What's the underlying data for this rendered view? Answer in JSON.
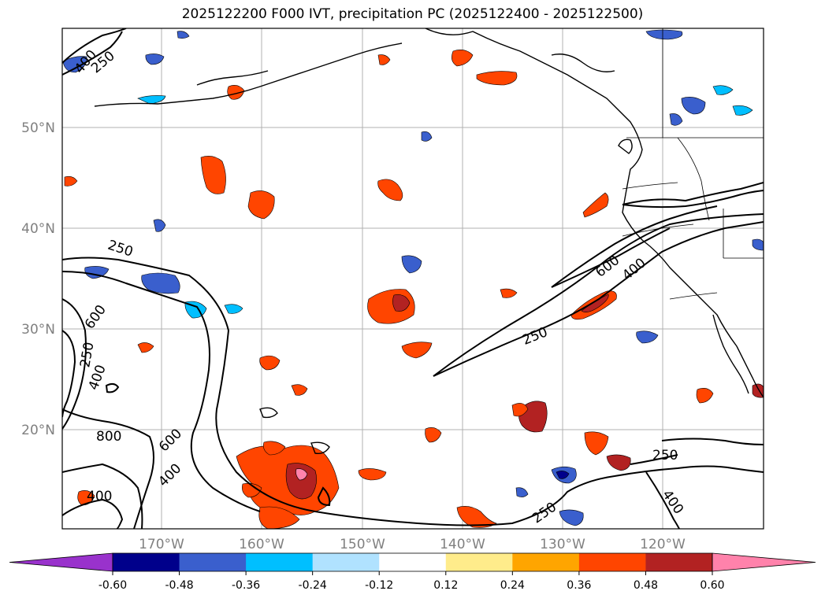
{
  "title": "2025122200 F000 IVT, precipitation PC (2025122400 - 2025122500)",
  "latitude_labels": [
    "50°N",
    "40°N",
    "30°N",
    "20°N"
  ],
  "longitude_labels": [
    "170°W",
    "160°W",
    "150°W",
    "140°W",
    "130°W",
    "120°W"
  ],
  "contour_labels": [
    "400",
    "250",
    "250",
    "600",
    "250",
    "400",
    "800",
    "600",
    "400",
    "400",
    "250",
    "600",
    "400",
    "250",
    "250",
    "400"
  ],
  "colorbar": {
    "ticks": [
      "-0.60",
      "-0.48",
      "-0.36",
      "-0.24",
      "-0.12",
      "0.12",
      "0.24",
      "0.36",
      "0.48",
      "0.60"
    ],
    "colors": [
      "#9932cc",
      "#00008b",
      "#3a5fcd",
      "#00bfff",
      "#b0e2ff",
      "#ffffff",
      "#ffec8b",
      "#ffa500",
      "#ff4500",
      "#b22222",
      "#ff82ab"
    ]
  }
}
